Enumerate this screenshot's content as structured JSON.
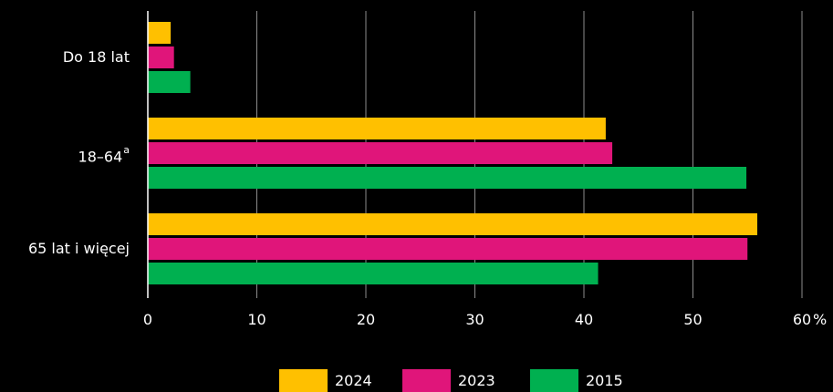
{
  "chart_data": {
    "type": "bar",
    "orientation": "horizontal",
    "categories": [
      "Do 18 lat",
      "18–64",
      "65 lat i więcej"
    ],
    "category_superscripts": [
      "",
      "a",
      ""
    ],
    "series": [
      {
        "name": "2024",
        "color": "#ffc000",
        "values": [
          2.1,
          42.0,
          55.9
        ]
      },
      {
        "name": "2023",
        "color": "#e0157a",
        "values": [
          2.4,
          42.6,
          55.0
        ]
      },
      {
        "name": "2015",
        "color": "#00b050",
        "values": [
          3.9,
          54.9,
          41.3
        ]
      }
    ],
    "x_ticks": [
      "0",
      "10",
      "20",
      "30",
      "40",
      "50",
      "60"
    ],
    "x_unit": "%",
    "xlim": [
      0,
      60
    ],
    "grid": true,
    "legend_position": "bottom",
    "title": "",
    "xlabel": "",
    "ylabel": ""
  }
}
